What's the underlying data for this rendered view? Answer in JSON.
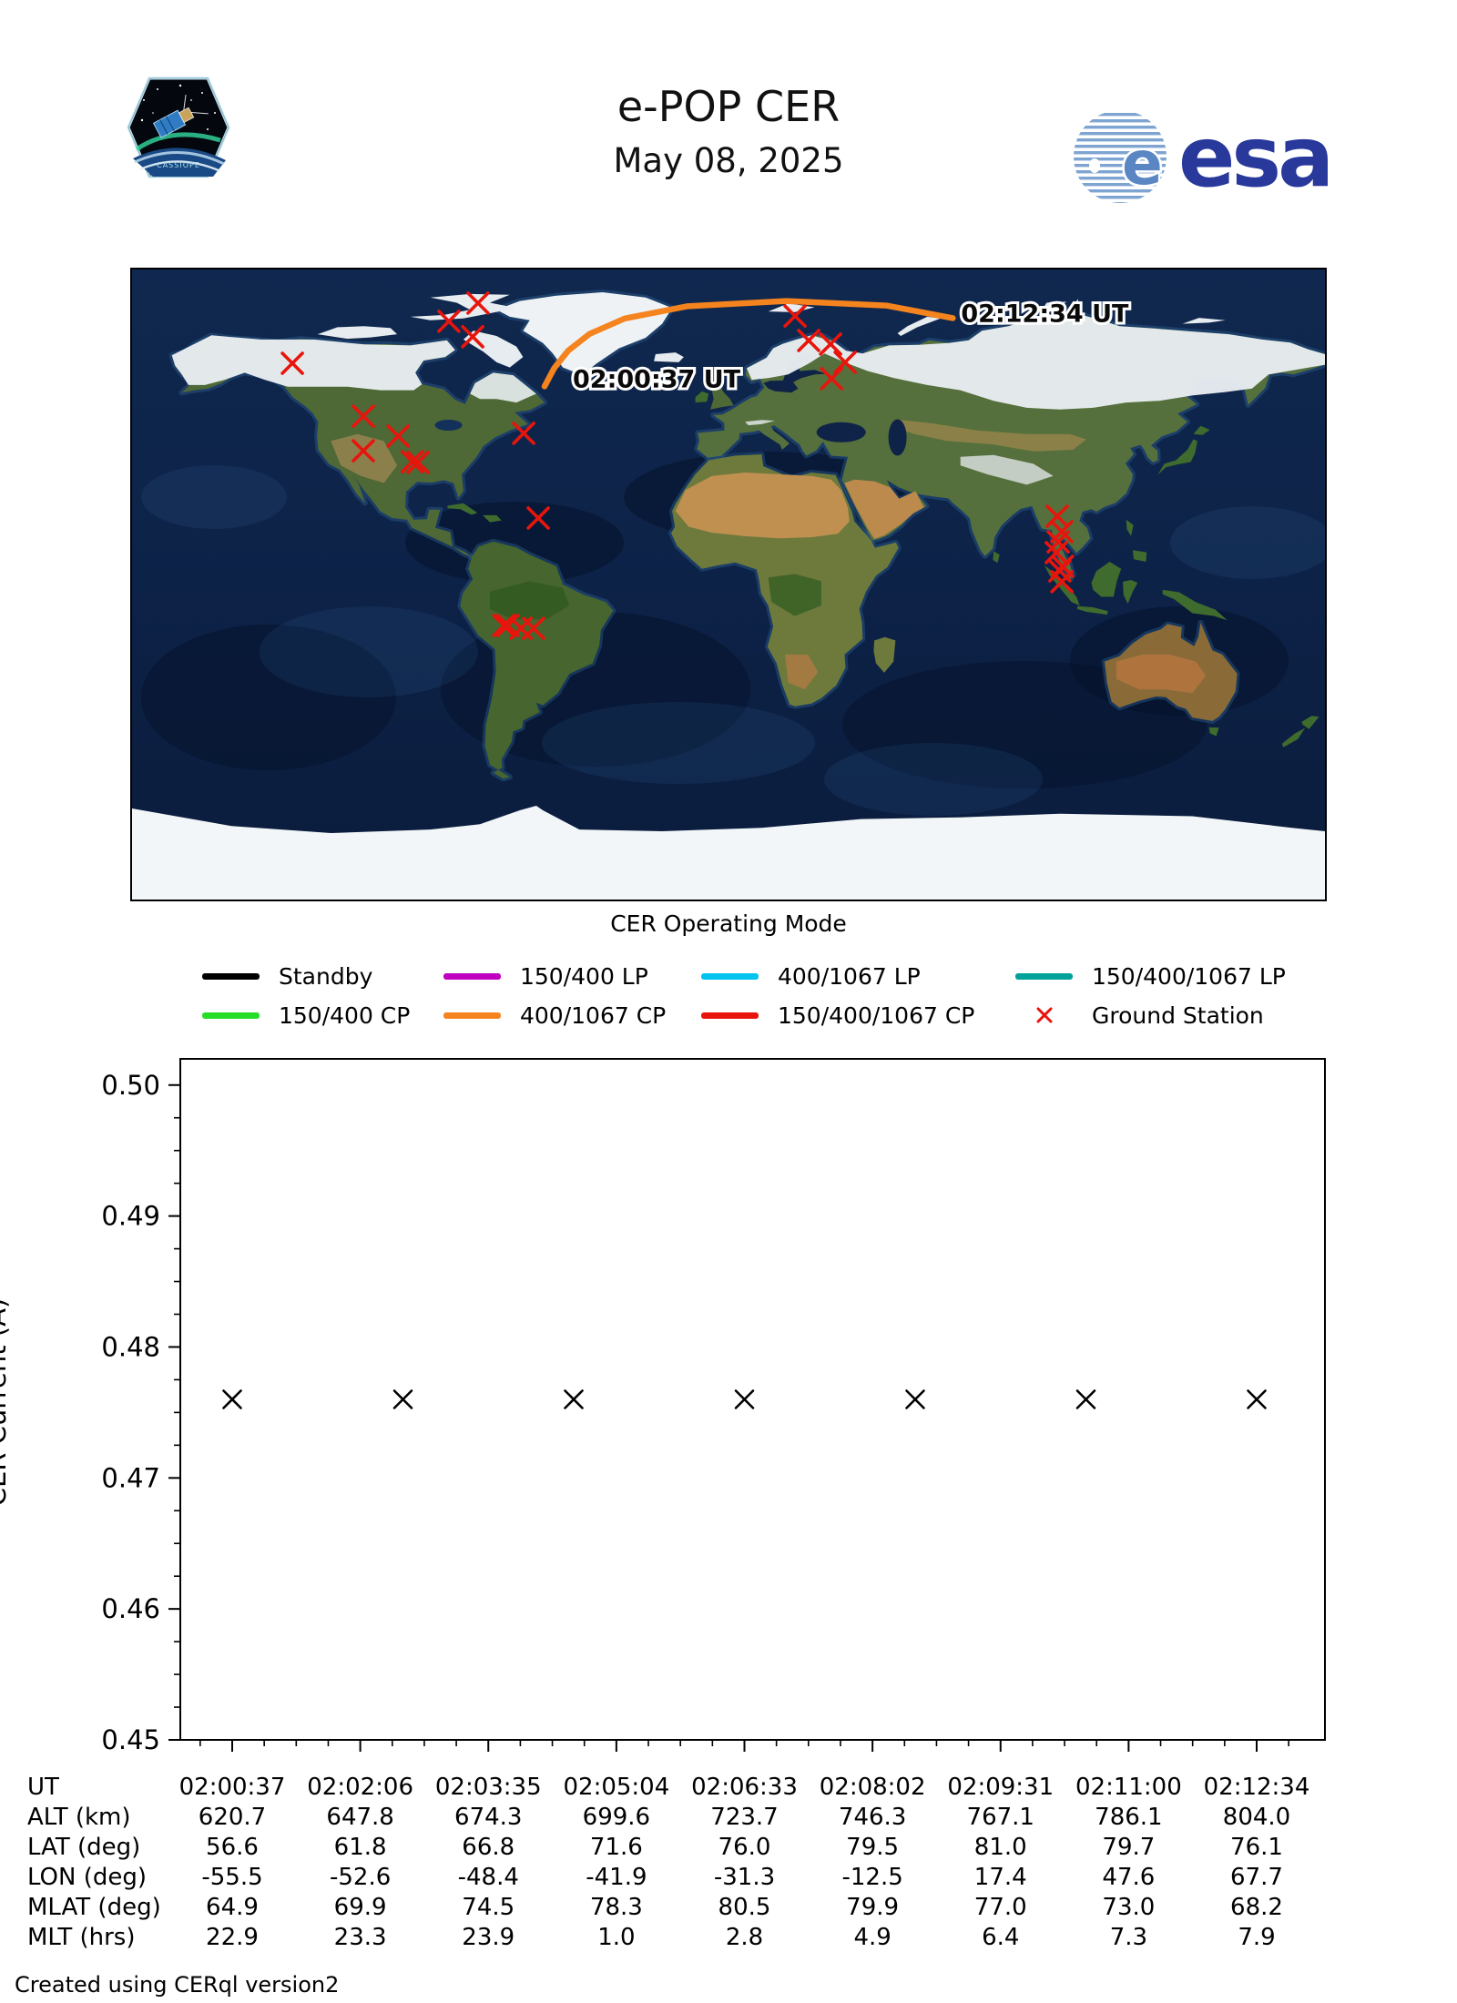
{
  "header": {
    "title": "e-POP CER",
    "date": "May 08, 2025",
    "patch_label": "CASSIOPE",
    "esa_wordmark": "esa"
  },
  "map": {
    "start_label": "02:00:37 UT",
    "end_label": "02:12:34 UT",
    "track_color": "#f5831e",
    "ground_station_color": "#e8150d",
    "track_lonlat": [
      [
        -55.5,
        56.6
      ],
      [
        -52.6,
        61.8
      ],
      [
        -48.4,
        66.8
      ],
      [
        -41.9,
        71.6
      ],
      [
        -31.3,
        76.0
      ],
      [
        -12.5,
        79.5
      ],
      [
        17.4,
        81.0
      ],
      [
        47.6,
        79.7
      ],
      [
        67.7,
        76.1
      ]
    ],
    "ground_stations_lonlat": [
      [
        -131.6,
        63.2
      ],
      [
        -84.4,
        75.2
      ],
      [
        -77.2,
        70.8
      ],
      [
        -75.6,
        80.4
      ],
      [
        -110.2,
        48.1
      ],
      [
        -99.7,
        42.4
      ],
      [
        -110.2,
        38.2
      ],
      [
        -95.4,
        35.1
      ],
      [
        -93.7,
        34.9
      ],
      [
        -61.8,
        43.2
      ],
      [
        -57.4,
        19.0
      ],
      [
        -67.8,
        -11.7
      ],
      [
        -66.6,
        -11.7
      ],
      [
        -62.6,
        -12.5
      ],
      [
        -58.8,
        -12.5
      ],
      [
        20.1,
        76.7
      ],
      [
        24.2,
        69.7
      ],
      [
        30.8,
        68.7
      ],
      [
        35.2,
        63.5
      ],
      [
        31.1,
        58.8
      ],
      [
        99.2,
        19.5
      ],
      [
        100.6,
        15.1
      ],
      [
        99.5,
        12.2
      ],
      [
        98.9,
        9.1
      ],
      [
        100.8,
        5.2
      ],
      [
        100.0,
        3.9
      ],
      [
        100.6,
        0.8
      ]
    ]
  },
  "legend": {
    "title": "CER Operating Mode",
    "items": [
      {
        "label": "Standby",
        "color": "#000000",
        "swatch": "line"
      },
      {
        "label": "150/400 LP",
        "color": "#bf00bf",
        "swatch": "line"
      },
      {
        "label": "400/1067 LP",
        "color": "#00c3f0",
        "swatch": "line"
      },
      {
        "label": "150/400/1067 LP",
        "color": "#00a29a",
        "swatch": "line"
      },
      {
        "label": "150/400 CP",
        "color": "#27dd27",
        "swatch": "line"
      },
      {
        "label": "400/1067 CP",
        "color": "#f5831e",
        "swatch": "line"
      },
      {
        "label": "150/400/1067 CP",
        "color": "#e8150d",
        "swatch": "line"
      },
      {
        "label": "Ground Station",
        "color": "#e8150d",
        "swatch": "x-marker"
      }
    ]
  },
  "chart_data": {
    "type": "scatter",
    "title": "",
    "xlabel": "",
    "ylabel": "CER Current (A)",
    "ylim": [
      0.45,
      0.502
    ],
    "yticks": [
      "0.45",
      "0.46",
      "0.47",
      "0.48",
      "0.49",
      "0.50"
    ],
    "y_minor_step": 0.0025,
    "x_tick_labels": [
      "02:00:37",
      "02:02:06",
      "02:03:35",
      "02:05:04",
      "02:06:33",
      "02:08:02",
      "02:09:31",
      "02:11:00",
      "02:12:34"
    ],
    "grid": false,
    "legend_position": "none",
    "series": [
      {
        "name": "CER Current",
        "marker": "x",
        "color": "#000000",
        "values": [
          0.476,
          0.476,
          0.476,
          0.476,
          0.476,
          0.476,
          0.476
        ]
      }
    ]
  },
  "table": {
    "rows": [
      {
        "label": "UT",
        "values": [
          "02:00:37",
          "02:02:06",
          "02:03:35",
          "02:05:04",
          "02:06:33",
          "02:08:02",
          "02:09:31",
          "02:11:00",
          "02:12:34"
        ]
      },
      {
        "label": "ALT (km)",
        "values": [
          "620.7",
          "647.8",
          "674.3",
          "699.6",
          "723.7",
          "746.3",
          "767.1",
          "786.1",
          "804.0"
        ]
      },
      {
        "label": "LAT (deg)",
        "values": [
          "56.6",
          "61.8",
          "66.8",
          "71.6",
          "76.0",
          "79.5",
          "81.0",
          "79.7",
          "76.1"
        ]
      },
      {
        "label": "LON (deg)",
        "values": [
          "-55.5",
          "-52.6",
          "-48.4",
          "-41.9",
          "-31.3",
          "-12.5",
          "17.4",
          "47.6",
          "67.7"
        ]
      },
      {
        "label": "MLAT (deg)",
        "values": [
          "64.9",
          "69.9",
          "74.5",
          "78.3",
          "80.5",
          "79.9",
          "77.0",
          "73.0",
          "68.2"
        ]
      },
      {
        "label": "MLT (hrs)",
        "values": [
          "22.9",
          "23.3",
          "23.9",
          "1.0",
          "2.8",
          "4.9",
          "6.4",
          "7.3",
          "7.9"
        ]
      }
    ]
  },
  "footer": {
    "credit": "Created using CERql version2"
  }
}
